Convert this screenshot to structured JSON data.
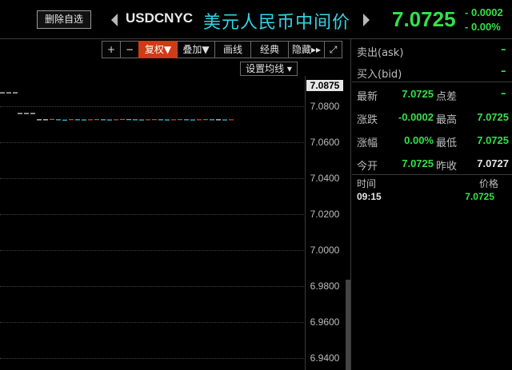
{
  "header": {
    "delete_label": "删除自选",
    "symbol": "USDCNYC",
    "name_cn": "美元人民币中间价",
    "price": "7.0725",
    "change_abs": "- 0.0002",
    "change_pct": "- 0.00%"
  },
  "toolbar": {
    "plus": "+",
    "minus": "−",
    "fuquan": "复权▼",
    "diejia": "叠加▼",
    "huaxian": "画线",
    "jingdian": "经典",
    "yincang": "隐藏▸▸",
    "fullscreen": "⤢",
    "ma_settings": "设置均线 ▾"
  },
  "axis": {
    "ticks": [
      "7.0875",
      "7.0800",
      "7.0600",
      "7.0400",
      "7.0200",
      "7.0000",
      "6.9800",
      "6.9600",
      "6.9400"
    ]
  },
  "chart_data": {
    "type": "line",
    "ylim": [
      6.935,
      7.09
    ],
    "series": [
      {
        "values": [
          7.0875,
          7.0875,
          7.0875
        ]
      },
      {
        "values": [
          7.076,
          7.076,
          7.076
        ]
      },
      {
        "values": [
          7.0725,
          7.0725,
          7.0727,
          7.0725,
          7.0723,
          7.0726,
          7.0725,
          7.0724,
          7.0725,
          7.0726,
          7.0725,
          7.0724,
          7.0725,
          7.0727,
          7.0726,
          7.0725,
          7.0724,
          7.0725,
          7.0726,
          7.0725,
          7.0724,
          7.0725,
          7.0726,
          7.0725,
          7.0724,
          7.0725,
          7.0726,
          7.0725,
          7.0725,
          7.0724,
          7.0725
        ]
      }
    ],
    "colors": {
      "up": "#e84040",
      "down": "#2fd6e6",
      "flat": "#e6e6e6"
    }
  },
  "quote": {
    "ask_label": "卖出(ask)",
    "ask_value": "–",
    "bid_label": "买入(bid)",
    "bid_value": "–",
    "latest_label": "最新",
    "latest_value": "7.0725",
    "spread_label": "点差",
    "spread_value": "–",
    "change_label": "涨跌",
    "change_value": "-0.0002",
    "high_label": "最高",
    "high_value": "7.0725",
    "pct_label": "涨幅",
    "pct_value": "0.00%",
    "low_label": "最低",
    "low_value": "7.0725",
    "open_label": "今开",
    "open_value": "7.0725",
    "prev_close_label": "昨收",
    "prev_close_value": "7.0727"
  },
  "ticks_table": {
    "time_header": "时间",
    "price_header": "价格",
    "rows": [
      {
        "time": "09:15",
        "price": "7.0725"
      }
    ]
  }
}
